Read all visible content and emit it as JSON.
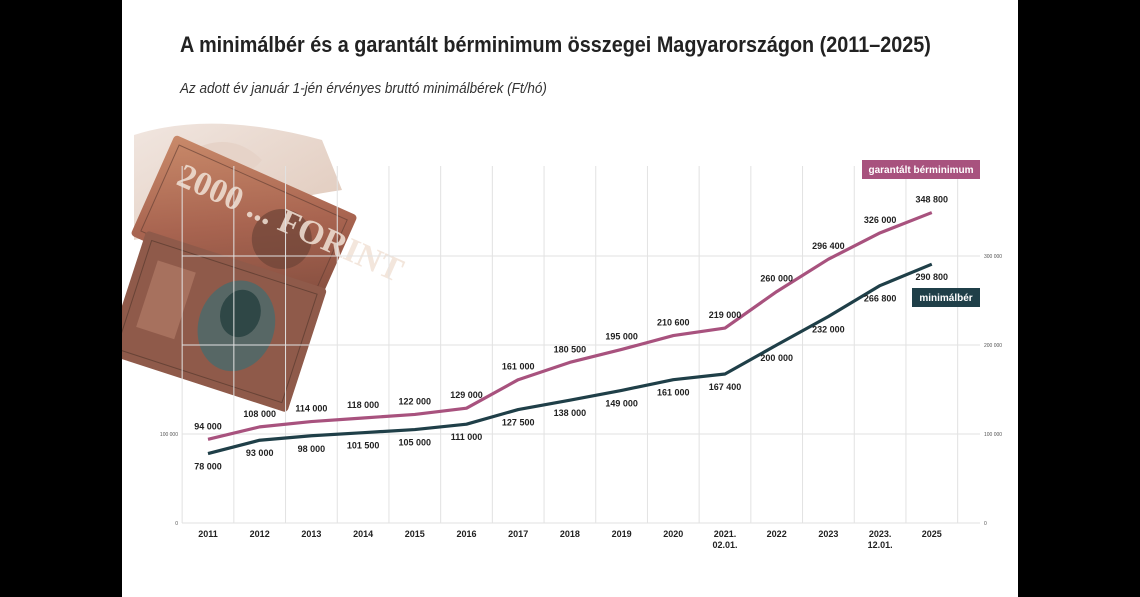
{
  "title": "A minimálbér és a garantált bérminimum összegei Magyarországon (2011–2025)",
  "subtitle": "Az adott év január 1-jén érvényes bruttó minimálbérek (Ft/hó)",
  "photo": {
    "icon": "banknotes-hand-photo",
    "banknote_text": "2000 ... FORINT"
  },
  "colors": {
    "garantalt": "#a8527e",
    "minimalber": "#1f3f48",
    "grid": "#e2e2e2"
  },
  "chart_data": {
    "type": "line",
    "categories": [
      "2011",
      "2012",
      "2013",
      "2014",
      "2015",
      "2016",
      "2017",
      "2018",
      "2019",
      "2020",
      "2021.\n02.01.",
      "2022",
      "2023",
      "2023.\n12.01.",
      "2025"
    ],
    "series": [
      {
        "name": "garantált bérminimum",
        "values": [
          94000,
          108000,
          114000,
          118000,
          122000,
          129000,
          161000,
          180500,
          195000,
          210600,
          219000,
          260000,
          296400,
          326000,
          348800
        ],
        "labels": [
          "94 000",
          "108 000",
          "114 000",
          "118 000",
          "122 000",
          "129 000",
          "161 000",
          "180 500",
          "195 000",
          "210 600",
          "219 000",
          "260 000",
          "296 400",
          "326 000",
          "348 800"
        ]
      },
      {
        "name": "minimálbér",
        "values": [
          78000,
          93000,
          98000,
          101500,
          105000,
          111000,
          127500,
          138000,
          149000,
          161000,
          167400,
          200000,
          232000,
          266800,
          290800
        ],
        "labels": [
          "78 000",
          "93 000",
          "98 000",
          "101 500",
          "105 000",
          "111 000",
          "127 500",
          "138 000",
          "149 000",
          "161 000",
          "167 400",
          "200 000",
          "232 000",
          "266 800",
          "290 800"
        ]
      }
    ],
    "yticks_left": [
      "0",
      "100 000"
    ],
    "yticks_right": [
      "0",
      "100 000",
      "200 000",
      "300 000"
    ],
    "ylim": [
      0,
      400000
    ],
    "grid": true,
    "legend": "labels at line ends (right)"
  }
}
